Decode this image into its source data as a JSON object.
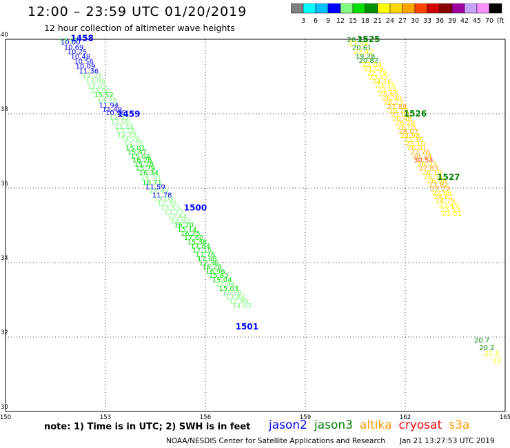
{
  "header": {
    "title": "12:00 – 23:59 UTC 01/20/2019",
    "subtitle": "12 hour collection of altimeter wave heights"
  },
  "colorbar": {
    "colors": [
      "#808080",
      "#00ffff",
      "#00c0ff",
      "#0000ff",
      "#80ff80",
      "#00e000",
      "#009000",
      "#ffff00",
      "#ffd700",
      "#ffa500",
      "#ff4500",
      "#d00000",
      "#8b0000",
      "#a000a0",
      "#c8a0ff",
      "#ff90ff",
      "#000000"
    ],
    "labels": [
      "3",
      "6",
      "9",
      "12",
      "15",
      "18",
      "21",
      "24",
      "27",
      "30",
      "33",
      "36",
      "39",
      "42",
      "45",
      "70",
      "(ft)"
    ]
  },
  "chart_data": {
    "type": "scatter",
    "title": "12:00 – 23:59 UTC 01/20/2019",
    "xlim": [
      150,
      165
    ],
    "ylim": [
      30,
      40
    ],
    "xticks": [
      "150",
      "153",
      "156",
      "159",
      "162",
      "165"
    ],
    "yticks": [
      "30",
      "32",
      "34",
      "36",
      "38",
      "40"
    ],
    "grid": true,
    "series": [
      {
        "name": "jason2",
        "points": [
          {
            "x": 151.9,
            "y": 39.92,
            "v": "13.05"
          },
          {
            "x": 151.95,
            "y": 39.86,
            "v": "10.00"
          },
          {
            "x": 152.05,
            "y": 39.72,
            "v": "10.69"
          },
          {
            "x": 152.15,
            "y": 39.6,
            "v": "10.25"
          },
          {
            "x": 152.25,
            "y": 39.47,
            "v": "10.48"
          },
          {
            "x": 152.35,
            "y": 39.34,
            "v": "10.56"
          },
          {
            "x": 152.4,
            "y": 39.21,
            "v": "10.09"
          },
          {
            "x": 152.5,
            "y": 39.08,
            "v": "11.36"
          },
          {
            "x": 152.6,
            "y": 38.96,
            "v": "12.01"
          },
          {
            "x": 152.7,
            "y": 38.82,
            "v": "13.06"
          },
          {
            "x": 152.75,
            "y": 38.68,
            "v": "12.45"
          },
          {
            "x": 152.85,
            "y": 38.56,
            "v": "13.90"
          },
          {
            "x": 152.95,
            "y": 38.44,
            "v": "15.52"
          },
          {
            "x": 153.05,
            "y": 38.3,
            "v": "14.25"
          },
          {
            "x": 153.1,
            "y": 38.17,
            "v": "11.94"
          },
          {
            "x": 153.2,
            "y": 38.06,
            "v": "11.49"
          },
          {
            "x": 153.3,
            "y": 37.96,
            "v": "10.96"
          },
          {
            "x": 153.4,
            "y": 37.84,
            "v": "12.55"
          },
          {
            "x": 153.45,
            "y": 37.72,
            "v": "13.00"
          },
          {
            "x": 153.55,
            "y": 37.59,
            "v": "13.39"
          },
          {
            "x": 153.6,
            "y": 37.48,
            "v": "13.58"
          },
          {
            "x": 153.65,
            "y": 37.36,
            "v": "14.28"
          },
          {
            "x": 153.75,
            "y": 37.26,
            "v": "14.26"
          },
          {
            "x": 153.85,
            "y": 37.13,
            "v": "14.75"
          },
          {
            "x": 153.9,
            "y": 37.01,
            "v": "15.01"
          },
          {
            "x": 153.95,
            "y": 36.91,
            "v": "15.47"
          },
          {
            "x": 154.05,
            "y": 36.79,
            "v": "15.04"
          },
          {
            "x": 154.1,
            "y": 36.69,
            "v": "16.26"
          },
          {
            "x": 154.15,
            "y": 36.58,
            "v": "15.28"
          },
          {
            "x": 154.2,
            "y": 36.47,
            "v": "15.79"
          },
          {
            "x": 154.3,
            "y": 36.35,
            "v": "16.34"
          },
          {
            "x": 154.35,
            "y": 36.23,
            "v": "14.70"
          },
          {
            "x": 154.4,
            "y": 36.09,
            "v": "16.71"
          },
          {
            "x": 154.5,
            "y": 35.97,
            "v": "11.59"
          },
          {
            "x": 154.6,
            "y": 35.86,
            "v": "14.44"
          },
          {
            "x": 154.7,
            "y": 35.75,
            "v": "11.78"
          },
          {
            "x": 154.75,
            "y": 35.65,
            "v": "12.03"
          },
          {
            "x": 154.85,
            "y": 35.53,
            "v": "12.35"
          },
          {
            "x": 154.95,
            "y": 35.41,
            "v": "13.53"
          },
          {
            "x": 155.05,
            "y": 35.29,
            "v": "13.27"
          },
          {
            "x": 155.15,
            "y": 35.18,
            "v": "13.44"
          },
          {
            "x": 155.25,
            "y": 35.05,
            "v": "14.83"
          },
          {
            "x": 155.35,
            "y": 34.95,
            "v": "16.20"
          },
          {
            "x": 155.45,
            "y": 34.83,
            "v": "15.14"
          },
          {
            "x": 155.55,
            "y": 34.72,
            "v": "16.25"
          },
          {
            "x": 155.65,
            "y": 34.61,
            "v": "17.60"
          },
          {
            "x": 155.75,
            "y": 34.49,
            "v": "15.38"
          },
          {
            "x": 155.85,
            "y": 34.38,
            "v": "17.84"
          },
          {
            "x": 155.9,
            "y": 34.27,
            "v": "17.15"
          },
          {
            "x": 156.0,
            "y": 34.16,
            "v": "17.76"
          },
          {
            "x": 156.05,
            "y": 34.04,
            "v": "17.08"
          },
          {
            "x": 156.1,
            "y": 33.93,
            "v": "17.36"
          },
          {
            "x": 156.2,
            "y": 33.82,
            "v": "16.28"
          },
          {
            "x": 156.3,
            "y": 33.7,
            "v": "16.96"
          },
          {
            "x": 156.4,
            "y": 33.59,
            "v": "15.82"
          },
          {
            "x": 156.5,
            "y": 33.47,
            "v": "15.04"
          },
          {
            "x": 156.6,
            "y": 33.36,
            "v": "14.96"
          },
          {
            "x": 156.7,
            "y": 33.24,
            "v": "15.03"
          },
          {
            "x": 156.8,
            "y": 33.13,
            "v": "13.58"
          },
          {
            "x": 156.9,
            "y": 33.01,
            "v": "13.84"
          },
          {
            "x": 157.0,
            "y": 32.9,
            "v": "12.99"
          },
          {
            "x": 157.1,
            "y": 32.78,
            "v": "14.03"
          }
        ]
      },
      {
        "name": "jason3",
        "points": [
          {
            "x": 160.55,
            "y": 39.93,
            "v": "20.71"
          },
          {
            "x": 160.6,
            "y": 39.82,
            "v": "21.54"
          },
          {
            "x": 160.7,
            "y": 39.71,
            "v": "20.61"
          },
          {
            "x": 160.75,
            "y": 39.6,
            "v": "22.42"
          },
          {
            "x": 160.8,
            "y": 39.48,
            "v": "19.28"
          },
          {
            "x": 160.9,
            "y": 39.37,
            "v": "20.82"
          },
          {
            "x": 161.0,
            "y": 39.26,
            "v": "22.04"
          },
          {
            "x": 161.05,
            "y": 39.15,
            "v": "21.09"
          },
          {
            "x": 161.15,
            "y": 39.03,
            "v": "22.79"
          },
          {
            "x": 161.2,
            "y": 38.92,
            "v": "23.47"
          },
          {
            "x": 161.3,
            "y": 38.81,
            "v": "24.16"
          },
          {
            "x": 161.4,
            "y": 38.7,
            "v": "23.34"
          },
          {
            "x": 161.45,
            "y": 38.58,
            "v": "23.44"
          },
          {
            "x": 161.5,
            "y": 38.47,
            "v": "25.65"
          },
          {
            "x": 161.6,
            "y": 38.36,
            "v": "26.90"
          },
          {
            "x": 161.65,
            "y": 38.25,
            "v": "26.23"
          },
          {
            "x": 161.75,
            "y": 38.13,
            "v": "27.89"
          },
          {
            "x": 161.8,
            "y": 38.02,
            "v": "25.78"
          },
          {
            "x": 161.85,
            "y": 37.91,
            "v": "25.05"
          },
          {
            "x": 161.9,
            "y": 37.8,
            "v": "26.98"
          },
          {
            "x": 162.0,
            "y": 37.69,
            "v": "26.28"
          },
          {
            "x": 162.05,
            "y": 37.57,
            "v": "26.05"
          },
          {
            "x": 162.1,
            "y": 37.46,
            "v": "28.07"
          },
          {
            "x": 162.15,
            "y": 37.35,
            "v": "24.98"
          },
          {
            "x": 162.25,
            "y": 37.24,
            "v": "25.36"
          },
          {
            "x": 162.3,
            "y": 37.13,
            "v": "25.10"
          },
          {
            "x": 162.35,
            "y": 37.02,
            "v": "26.01"
          },
          {
            "x": 162.45,
            "y": 36.91,
            "v": "27.76"
          },
          {
            "x": 162.5,
            "y": 36.8,
            "v": "28.24"
          },
          {
            "x": 162.55,
            "y": 36.69,
            "v": "30.54"
          },
          {
            "x": 162.65,
            "y": 36.58,
            "v": "26.03"
          },
          {
            "x": 162.7,
            "y": 36.47,
            "v": "27.83"
          },
          {
            "x": 162.8,
            "y": 36.36,
            "v": "26.10"
          },
          {
            "x": 162.85,
            "y": 36.25,
            "v": "26.51"
          },
          {
            "x": 162.95,
            "y": 36.14,
            "v": "26.98"
          },
          {
            "x": 163.0,
            "y": 36.03,
            "v": "27.82"
          },
          {
            "x": 163.05,
            "y": 35.92,
            "v": "27.27"
          },
          {
            "x": 163.1,
            "y": 35.81,
            "v": "22.86"
          },
          {
            "x": 163.15,
            "y": 35.7,
            "v": "24.61"
          },
          {
            "x": 163.2,
            "y": 35.59,
            "v": "24.79"
          },
          {
            "x": 163.3,
            "y": 35.48,
            "v": "23.49"
          },
          {
            "x": 163.35,
            "y": 35.37,
            "v": "23.53"
          },
          {
            "x": 163.4,
            "y": 35.26,
            "v": "21.51"
          },
          {
            "x": 164.3,
            "y": 31.85,
            "v": "20.7"
          },
          {
            "x": 164.45,
            "y": 31.65,
            "v": "20.2"
          },
          {
            "x": 164.6,
            "y": 31.5,
            "v": "21.5"
          },
          {
            "x": 164.75,
            "y": 31.3,
            "v": "22"
          }
        ]
      }
    ],
    "time_labels": [
      {
        "text": "1458",
        "x": 152.3,
        "y": 39.95,
        "sat": "jason2"
      },
      {
        "text": "1459",
        "x": 153.7,
        "y": 37.92,
        "sat": "jason2"
      },
      {
        "text": "1500",
        "x": 155.7,
        "y": 35.4,
        "sat": "jason2"
      },
      {
        "text": "1501",
        "x": 157.25,
        "y": 32.2,
        "sat": "jason2"
      },
      {
        "text": "1525",
        "x": 160.9,
        "y": 39.93,
        "sat": "jason3"
      },
      {
        "text": "1526",
        "x": 162.3,
        "y": 37.93,
        "sat": "jason3"
      },
      {
        "text": "1527",
        "x": 163.3,
        "y": 36.22,
        "sat": "jason3"
      }
    ]
  },
  "footer": {
    "note": "note: 1) Time is in UTC; 2) SWH is in feet",
    "satellites": [
      {
        "label": "jason2",
        "color": "#0000ff"
      },
      {
        "label": "jason3",
        "color": "#008000"
      },
      {
        "label": "altika",
        "color": "#ff9900"
      },
      {
        "label": "cryosat",
        "color": "#ff0000"
      },
      {
        "label": "s3a",
        "color": "#ff9900"
      }
    ],
    "credit": "NOAA/NESDIS Center for Satellite Applications and Research",
    "timestamp": "Jan 21 13:27:53 UTC 2019"
  }
}
